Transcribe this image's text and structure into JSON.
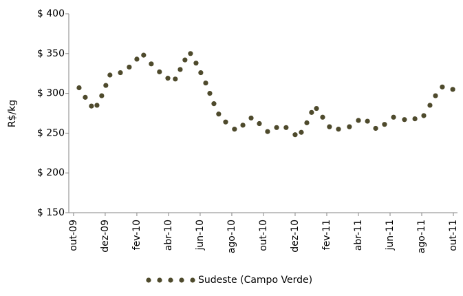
{
  "chart_data": {
    "type": "scatter",
    "y_label": "R$/kg",
    "x": [
      0.35,
      0.74,
      1.13,
      1.48,
      1.78,
      2.04,
      2.3,
      2.96,
      3.52,
      4.0,
      4.43,
      4.91,
      5.43,
      5.96,
      6.43,
      6.74,
      7.04,
      7.39,
      7.74,
      8.04,
      8.35,
      8.61,
      8.87,
      9.17,
      9.61,
      10.17,
      10.7,
      11.22,
      11.74,
      12.26,
      12.83,
      13.43,
      14.0,
      14.39,
      14.74,
      15.04,
      15.35,
      15.74,
      16.17,
      16.74,
      17.43,
      18.0,
      18.57,
      19.09,
      19.65,
      20.22,
      20.91,
      21.57,
      22.13,
      22.52,
      22.87,
      23.3,
      23.96
    ],
    "series": [
      {
        "name": "Sudeste (Campo Verde)",
        "color": "#4e4a2c",
        "values": [
          307,
          295,
          284,
          285,
          297,
          310,
          323,
          326,
          333,
          343,
          348,
          337,
          327,
          319,
          318,
          330,
          342,
          350,
          338,
          326,
          313,
          300,
          287,
          274,
          264,
          255,
          260,
          269,
          262,
          252,
          257,
          257,
          248,
          251,
          263,
          276,
          281,
          270,
          258,
          255,
          258,
          266,
          265,
          256,
          261,
          270,
          267,
          268,
          272,
          285,
          297,
          308,
          305
        ]
      }
    ],
    "xlim": [
      -0.3,
      24.26
    ],
    "xticks": [
      {
        "value": 0,
        "label": "out-09"
      },
      {
        "value": 2,
        "label": "dez-09"
      },
      {
        "value": 4,
        "label": "fev-10"
      },
      {
        "value": 6,
        "label": "abr-10"
      },
      {
        "value": 8,
        "label": "jun-10"
      },
      {
        "value": 10,
        "label": "ago-10"
      },
      {
        "value": 12,
        "label": "out-10"
      },
      {
        "value": 14,
        "label": "dez-10"
      },
      {
        "value": 16,
        "label": "fev-11"
      },
      {
        "value": 18,
        "label": "abr-11"
      },
      {
        "value": 20,
        "label": "jun-11"
      },
      {
        "value": 22,
        "label": "ago-11"
      },
      {
        "value": 24,
        "label": "out-11"
      }
    ],
    "ylim": [
      150,
      400
    ],
    "yticks": [
      {
        "value": 150,
        "label": "$ 150"
      },
      {
        "value": 200,
        "label": "$ 200"
      },
      {
        "value": 250,
        "label": "$ 250"
      },
      {
        "value": 300,
        "label": "$ 300"
      },
      {
        "value": 350,
        "label": "$ 350"
      },
      {
        "value": 400,
        "label": "$ 400"
      }
    ],
    "legend": "bottom"
  }
}
